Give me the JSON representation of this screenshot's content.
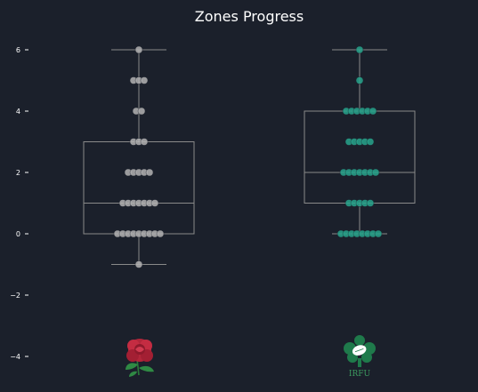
{
  "chart_data": {
    "type": "box",
    "title": "Zones Progress",
    "xlabel": "",
    "ylabel": "",
    "ylim": [
      -5,
      6.5
    ],
    "yticks": [
      6,
      4,
      2,
      0,
      -2,
      -4
    ],
    "ytick_labels": [
      "6",
      "4",
      "2",
      "0",
      "−2",
      "−4"
    ],
    "grid": false,
    "series": [
      {
        "logo": "england-rose",
        "color": "#b3b3b3",
        "box": {
          "whisker_low": -1,
          "q1": 0,
          "median": 1,
          "q3": 3,
          "whisker_high": 6
        },
        "points": [
          6,
          5,
          5,
          5,
          4,
          4,
          3,
          3,
          3,
          2,
          2,
          2,
          2,
          2,
          1,
          1,
          1,
          1,
          1,
          1,
          1,
          0,
          0,
          0,
          0,
          0,
          0,
          0,
          0,
          0,
          -1
        ]
      },
      {
        "logo": "irfu-shamrock",
        "logo_text": "IRFU",
        "color": "#27a58c",
        "box": {
          "whisker_low": 0,
          "q1": 1,
          "median": 2,
          "q3": 4,
          "whisker_high": 6
        },
        "points": [
          6,
          5,
          4,
          4,
          4,
          4,
          4,
          4,
          3,
          3,
          3,
          3,
          3,
          2,
          2,
          2,
          2,
          2,
          2,
          2,
          1,
          1,
          1,
          1,
          1,
          0,
          0,
          0,
          0,
          0,
          0,
          0,
          0
        ]
      }
    ]
  }
}
